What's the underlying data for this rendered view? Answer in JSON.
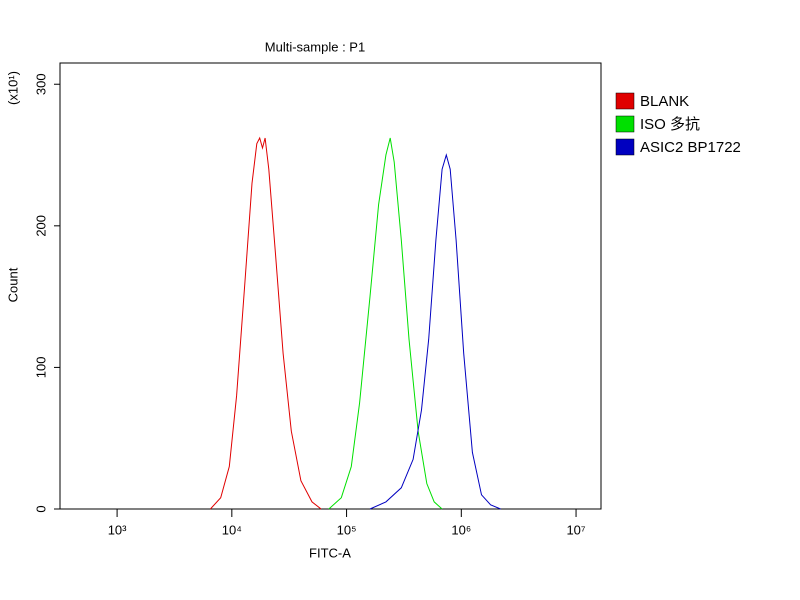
{
  "chart_data": {
    "type": "line",
    "title": "Multi-sample : P1",
    "x_label": "FITC-A",
    "y_label": "Count",
    "y_multiplier": "(x10¹)",
    "xscale": "log",
    "xlim": [
      318,
      16500000
    ],
    "ylim": [
      0,
      315
    ],
    "xticks": [
      {
        "value": 1000,
        "label": "10³"
      },
      {
        "value": 10000,
        "label": "10⁴"
      },
      {
        "value": 100000,
        "label": "10⁵"
      },
      {
        "value": 1000000,
        "label": "10⁶"
      },
      {
        "value": 10000000,
        "label": "10⁷"
      }
    ],
    "yticks": [
      0,
      100,
      200,
      300
    ],
    "series": [
      {
        "name": "BLANK",
        "color": "#e00000",
        "x": [
          6500,
          8000,
          9500,
          11000,
          13000,
          15000,
          16500,
          17500,
          18500,
          19500,
          21000,
          24000,
          28000,
          33000,
          40000,
          50000,
          60000
        ],
        "values": [
          0,
          8,
          30,
          80,
          160,
          230,
          258,
          262,
          255,
          262,
          240,
          180,
          110,
          55,
          20,
          5,
          0
        ]
      },
      {
        "name": "ISO 多抗",
        "color": "#00e000",
        "x": [
          70000,
          90000,
          110000,
          130000,
          160000,
          190000,
          220000,
          240000,
          260000,
          300000,
          350000,
          420000,
          500000,
          580000,
          680000
        ],
        "values": [
          0,
          8,
          30,
          75,
          150,
          215,
          250,
          262,
          245,
          190,
          120,
          55,
          18,
          5,
          0
        ]
      },
      {
        "name": "ASIC2 BP1722",
        "color": "#0000c0",
        "x": [
          160000,
          220000,
          300000,
          380000,
          450000,
          520000,
          600000,
          680000,
          740000,
          800000,
          900000,
          1050000,
          1250000,
          1500000,
          1800000,
          2200000
        ],
        "values": [
          0,
          5,
          15,
          35,
          70,
          120,
          190,
          240,
          250,
          240,
          190,
          110,
          40,
          10,
          3,
          0
        ]
      }
    ]
  }
}
